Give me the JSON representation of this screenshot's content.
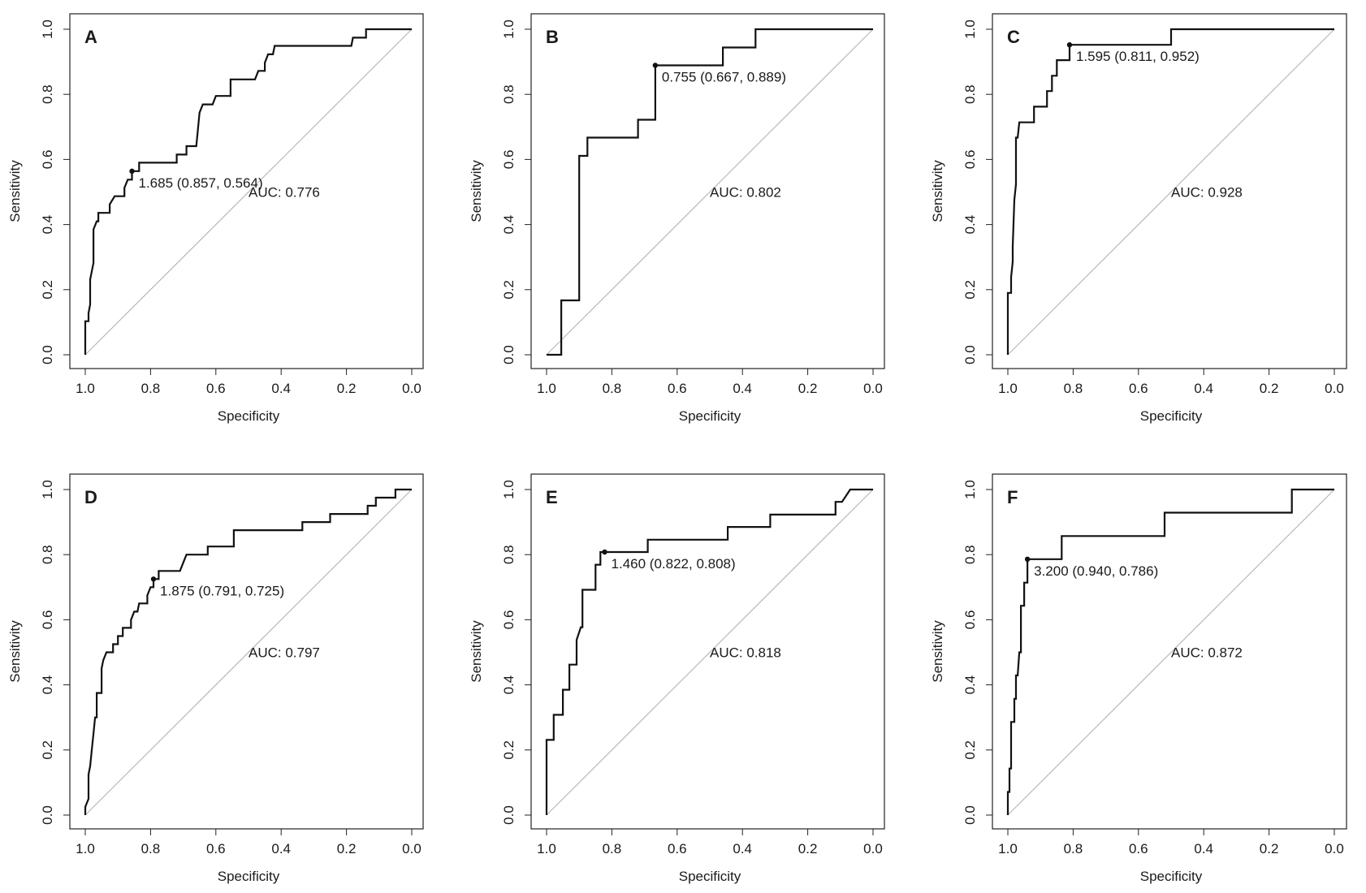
{
  "chart_data": [
    {
      "type": "line",
      "panel": "A",
      "xlabel": "Specificity",
      "ylabel": "Sensitivity",
      "xlim": [
        1.0,
        0.0
      ],
      "ylim": [
        0.0,
        1.0
      ],
      "x_ticks": [
        "1.0",
        "0.8",
        "0.6",
        "0.4",
        "0.2",
        "0.0"
      ],
      "y_ticks": [
        "0.0",
        "0.2",
        "0.4",
        "0.6",
        "0.8",
        "1.0"
      ],
      "auc_label": "AUC: 0.776",
      "threshold_label": "1.685 (0.857, 0.564)",
      "threshold_point": [
        0.857,
        0.564
      ],
      "roc": [
        [
          1.0,
          0.0
        ],
        [
          1.0,
          0.103
        ],
        [
          0.99,
          0.103
        ],
        [
          0.99,
          0.128
        ],
        [
          0.985,
          0.154
        ],
        [
          0.985,
          0.231
        ],
        [
          0.98,
          0.256
        ],
        [
          0.975,
          0.282
        ],
        [
          0.975,
          0.385
        ],
        [
          0.965,
          0.41
        ],
        [
          0.96,
          0.41
        ],
        [
          0.96,
          0.436
        ],
        [
          0.94,
          0.436
        ],
        [
          0.925,
          0.436
        ],
        [
          0.925,
          0.462
        ],
        [
          0.91,
          0.487
        ],
        [
          0.88,
          0.487
        ],
        [
          0.88,
          0.513
        ],
        [
          0.87,
          0.538
        ],
        [
          0.857,
          0.538
        ],
        [
          0.857,
          0.564
        ],
        [
          0.835,
          0.564
        ],
        [
          0.835,
          0.59
        ],
        [
          0.72,
          0.59
        ],
        [
          0.72,
          0.615
        ],
        [
          0.69,
          0.615
        ],
        [
          0.69,
          0.641
        ],
        [
          0.66,
          0.641
        ],
        [
          0.655,
          0.692
        ],
        [
          0.65,
          0.744
        ],
        [
          0.64,
          0.769
        ],
        [
          0.61,
          0.769
        ],
        [
          0.6,
          0.795
        ],
        [
          0.555,
          0.795
        ],
        [
          0.555,
          0.846
        ],
        [
          0.48,
          0.846
        ],
        [
          0.47,
          0.872
        ],
        [
          0.45,
          0.872
        ],
        [
          0.45,
          0.897
        ],
        [
          0.44,
          0.923
        ],
        [
          0.425,
          0.923
        ],
        [
          0.42,
          0.949
        ],
        [
          0.185,
          0.949
        ],
        [
          0.18,
          0.974
        ],
        [
          0.14,
          0.974
        ],
        [
          0.14,
          1.0
        ],
        [
          0.0,
          1.0
        ]
      ]
    },
    {
      "type": "line",
      "panel": "B",
      "xlabel": "Specificity",
      "ylabel": "Sensitivity",
      "xlim": [
        1.0,
        0.0
      ],
      "ylim": [
        0.0,
        1.0
      ],
      "x_ticks": [
        "1.0",
        "0.8",
        "0.6",
        "0.4",
        "0.2",
        "0.0"
      ],
      "y_ticks": [
        "0.0",
        "0.2",
        "0.4",
        "0.6",
        "0.8",
        "1.0"
      ],
      "auc_label": "AUC: 0.802",
      "threshold_label": "0.755 (0.667, 0.889)",
      "threshold_point": [
        0.667,
        0.889
      ],
      "roc": [
        [
          1.0,
          0.0
        ],
        [
          0.955,
          0.0
        ],
        [
          0.955,
          0.167
        ],
        [
          0.9,
          0.167
        ],
        [
          0.9,
          0.611
        ],
        [
          0.875,
          0.611
        ],
        [
          0.875,
          0.667
        ],
        [
          0.72,
          0.667
        ],
        [
          0.72,
          0.722
        ],
        [
          0.667,
          0.722
        ],
        [
          0.667,
          0.889
        ],
        [
          0.46,
          0.889
        ],
        [
          0.46,
          0.944
        ],
        [
          0.36,
          0.944
        ],
        [
          0.36,
          1.0
        ],
        [
          0.0,
          1.0
        ]
      ]
    },
    {
      "type": "line",
      "panel": "C",
      "xlabel": "Specificity",
      "ylabel": "Sensitivity",
      "xlim": [
        1.0,
        0.0
      ],
      "ylim": [
        0.0,
        1.0
      ],
      "x_ticks": [
        "1.0",
        "0.8",
        "0.6",
        "0.4",
        "0.2",
        "0.0"
      ],
      "y_ticks": [
        "0.0",
        "0.2",
        "0.4",
        "0.6",
        "0.8",
        "1.0"
      ],
      "auc_label": "AUC: 0.928",
      "threshold_label": "1.595 (0.811, 0.952)",
      "threshold_point": [
        0.811,
        0.952
      ],
      "roc": [
        [
          1.0,
          0.0
        ],
        [
          1.0,
          0.19
        ],
        [
          0.99,
          0.19
        ],
        [
          0.99,
          0.238
        ],
        [
          0.985,
          0.286
        ],
        [
          0.985,
          0.333
        ],
        [
          0.98,
          0.476
        ],
        [
          0.975,
          0.524
        ],
        [
          0.975,
          0.667
        ],
        [
          0.97,
          0.667
        ],
        [
          0.965,
          0.714
        ],
        [
          0.92,
          0.714
        ],
        [
          0.92,
          0.762
        ],
        [
          0.88,
          0.762
        ],
        [
          0.88,
          0.81
        ],
        [
          0.865,
          0.81
        ],
        [
          0.865,
          0.857
        ],
        [
          0.85,
          0.857
        ],
        [
          0.85,
          0.905
        ],
        [
          0.811,
          0.905
        ],
        [
          0.811,
          0.952
        ],
        [
          0.5,
          0.952
        ],
        [
          0.5,
          1.0
        ],
        [
          0.0,
          1.0
        ]
      ]
    },
    {
      "type": "line",
      "panel": "D",
      "xlabel": "Specificity",
      "ylabel": "Sensitivity",
      "xlim": [
        1.0,
        0.0
      ],
      "ylim": [
        0.0,
        1.0
      ],
      "x_ticks": [
        "1.0",
        "0.8",
        "0.6",
        "0.4",
        "0.2",
        "0.0"
      ],
      "y_ticks": [
        "0.0",
        "0.2",
        "0.4",
        "0.6",
        "0.8",
        "1.0"
      ],
      "auc_label": "AUC: 0.797",
      "threshold_label": "1.875 (0.791, 0.725)",
      "threshold_point": [
        0.791,
        0.725
      ],
      "roc": [
        [
          1.0,
          0.0
        ],
        [
          1.0,
          0.025
        ],
        [
          0.99,
          0.05
        ],
        [
          0.99,
          0.125
        ],
        [
          0.985,
          0.15
        ],
        [
          0.98,
          0.2
        ],
        [
          0.975,
          0.25
        ],
        [
          0.97,
          0.3
        ],
        [
          0.965,
          0.3
        ],
        [
          0.965,
          0.375
        ],
        [
          0.95,
          0.375
        ],
        [
          0.95,
          0.45
        ],
        [
          0.945,
          0.475
        ],
        [
          0.935,
          0.5
        ],
        [
          0.915,
          0.5
        ],
        [
          0.915,
          0.525
        ],
        [
          0.9,
          0.525
        ],
        [
          0.9,
          0.55
        ],
        [
          0.885,
          0.55
        ],
        [
          0.885,
          0.575
        ],
        [
          0.86,
          0.575
        ],
        [
          0.86,
          0.6
        ],
        [
          0.85,
          0.625
        ],
        [
          0.84,
          0.625
        ],
        [
          0.835,
          0.65
        ],
        [
          0.81,
          0.65
        ],
        [
          0.81,
          0.675
        ],
        [
          0.8,
          0.7
        ],
        [
          0.791,
          0.7
        ],
        [
          0.791,
          0.725
        ],
        [
          0.775,
          0.725
        ],
        [
          0.775,
          0.75
        ],
        [
          0.71,
          0.75
        ],
        [
          0.7,
          0.775
        ],
        [
          0.69,
          0.8
        ],
        [
          0.625,
          0.8
        ],
        [
          0.625,
          0.825
        ],
        [
          0.545,
          0.825
        ],
        [
          0.545,
          0.875
        ],
        [
          0.335,
          0.875
        ],
        [
          0.335,
          0.9
        ],
        [
          0.25,
          0.9
        ],
        [
          0.25,
          0.925
        ],
        [
          0.135,
          0.925
        ],
        [
          0.135,
          0.95
        ],
        [
          0.11,
          0.95
        ],
        [
          0.11,
          0.975
        ],
        [
          0.05,
          0.975
        ],
        [
          0.05,
          1.0
        ],
        [
          0.0,
          1.0
        ]
      ]
    },
    {
      "type": "line",
      "panel": "E",
      "xlabel": "Specificity",
      "ylabel": "Sensitivity",
      "xlim": [
        1.0,
        0.0
      ],
      "ylim": [
        0.0,
        1.0
      ],
      "x_ticks": [
        "1.0",
        "0.8",
        "0.6",
        "0.4",
        "0.2",
        "0.0"
      ],
      "y_ticks": [
        "0.0",
        "0.2",
        "0.4",
        "0.6",
        "0.8",
        "1.0"
      ],
      "auc_label": "AUC: 0.818",
      "threshold_label": "1.460 (0.822, 0.808)",
      "threshold_point": [
        0.822,
        0.808
      ],
      "roc": [
        [
          1.0,
          0.0
        ],
        [
          1.0,
          0.231
        ],
        [
          0.978,
          0.231
        ],
        [
          0.978,
          0.308
        ],
        [
          0.95,
          0.308
        ],
        [
          0.95,
          0.385
        ],
        [
          0.93,
          0.385
        ],
        [
          0.93,
          0.462
        ],
        [
          0.908,
          0.462
        ],
        [
          0.908,
          0.538
        ],
        [
          0.895,
          0.577
        ],
        [
          0.89,
          0.577
        ],
        [
          0.89,
          0.692
        ],
        [
          0.85,
          0.692
        ],
        [
          0.85,
          0.769
        ],
        [
          0.835,
          0.769
        ],
        [
          0.835,
          0.808
        ],
        [
          0.69,
          0.808
        ],
        [
          0.69,
          0.846
        ],
        [
          0.445,
          0.846
        ],
        [
          0.445,
          0.885
        ],
        [
          0.315,
          0.885
        ],
        [
          0.315,
          0.923
        ],
        [
          0.115,
          0.923
        ],
        [
          0.115,
          0.962
        ],
        [
          0.095,
          0.962
        ],
        [
          0.07,
          1.0
        ],
        [
          0.0,
          1.0
        ]
      ]
    },
    {
      "type": "line",
      "panel": "F",
      "xlabel": "Specificity",
      "ylabel": "Sensitivity",
      "xlim": [
        1.0,
        0.0
      ],
      "ylim": [
        0.0,
        1.0
      ],
      "x_ticks": [
        "1.0",
        "0.8",
        "0.6",
        "0.4",
        "0.2",
        "0.0"
      ],
      "y_ticks": [
        "0.0",
        "0.2",
        "0.4",
        "0.6",
        "0.8",
        "1.0"
      ],
      "auc_label": "AUC: 0.872",
      "threshold_label": "3.200 (0.940, 0.786)",
      "threshold_point": [
        0.94,
        0.786
      ],
      "roc": [
        [
          1.0,
          0.0
        ],
        [
          1.0,
          0.071
        ],
        [
          0.995,
          0.071
        ],
        [
          0.995,
          0.143
        ],
        [
          0.99,
          0.143
        ],
        [
          0.99,
          0.286
        ],
        [
          0.98,
          0.286
        ],
        [
          0.98,
          0.357
        ],
        [
          0.975,
          0.357
        ],
        [
          0.975,
          0.429
        ],
        [
          0.97,
          0.429
        ],
        [
          0.965,
          0.5
        ],
        [
          0.96,
          0.5
        ],
        [
          0.96,
          0.643
        ],
        [
          0.95,
          0.643
        ],
        [
          0.95,
          0.714
        ],
        [
          0.94,
          0.714
        ],
        [
          0.94,
          0.786
        ],
        [
          0.835,
          0.786
        ],
        [
          0.835,
          0.857
        ],
        [
          0.52,
          0.857
        ],
        [
          0.52,
          0.929
        ],
        [
          0.13,
          0.929
        ],
        [
          0.13,
          1.0
        ],
        [
          0.0,
          1.0
        ]
      ]
    }
  ]
}
